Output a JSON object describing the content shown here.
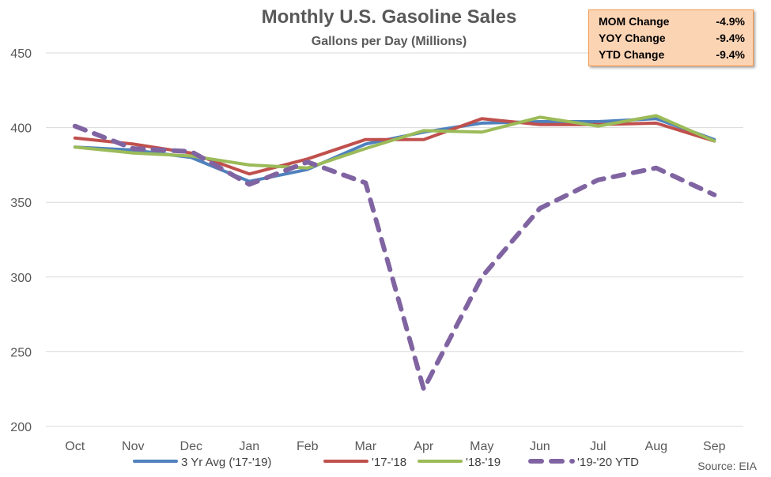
{
  "chart_data": {
    "type": "line",
    "title": "Monthly U.S. Gasoline Sales",
    "subtitle": "Gallons per Day (Millions)",
    "categories": [
      "Oct",
      "Nov",
      "Dec",
      "Jan",
      "Feb",
      "Mar",
      "Apr",
      "May",
      "Jun",
      "Jul",
      "Aug",
      "Sep"
    ],
    "ylim": [
      200,
      450
    ],
    "yticks": [
      200,
      250,
      300,
      350,
      400,
      450
    ],
    "grid": true,
    "legend_position": "bottom",
    "series": [
      {
        "name": "3 Yr Avg ('17-'19)",
        "color": "#4f81bd",
        "dashed": false,
        "values": [
          387,
          385,
          380,
          364,
          372,
          389,
          397,
          403,
          404,
          404,
          406,
          392
        ]
      },
      {
        "name": "'17-'18",
        "color": "#c0504d",
        "dashed": false,
        "values": [
          393,
          389,
          383,
          369,
          379,
          392,
          392,
          406,
          402,
          402,
          403,
          391
        ]
      },
      {
        "name": "'18-'19",
        "color": "#9bbb59",
        "dashed": false,
        "values": [
          387,
          383,
          381,
          375,
          373,
          386,
          398,
          397,
          407,
          401,
          408,
          391
        ]
      },
      {
        "name": "'19-'20 YTD",
        "color": "#8064a2",
        "dashed": true,
        "values": [
          401,
          386,
          384,
          362,
          377,
          363,
          225,
          300,
          346,
          365,
          373,
          355
        ]
      }
    ],
    "source": "Source: EIA"
  },
  "stats": [
    {
      "label": "MOM Change",
      "value": "-4.9%"
    },
    {
      "label": "YOY Change",
      "value": "-9.4%"
    },
    {
      "label": "YTD Change",
      "value": "-9.4%"
    }
  ]
}
